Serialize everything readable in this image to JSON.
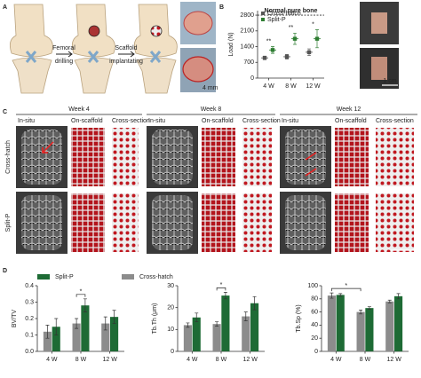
{
  "panel_labels": [
    "A",
    "B",
    "C",
    "D"
  ],
  "panel_a": {
    "steps": [
      [
        "Femoral",
        "drilling"
      ],
      [
        "Scaffold",
        "implantating"
      ]
    ],
    "scale_bar": "4 mm"
  },
  "panel_b_photos": {
    "scale_bar": "1 cm"
  },
  "panel_c": {
    "weeks": [
      "Week 4",
      "Week 8",
      "Week 12"
    ],
    "columns": [
      "In-situ",
      "On-scaffold",
      "Cross-section"
    ],
    "rows": [
      "Cross-hatch",
      "Split-P"
    ]
  },
  "chart_data": [
    {
      "type": "dot",
      "ylabel": "Load (N)",
      "categories": [
        "4 W",
        "8 W",
        "12 W"
      ],
      "ylim": [
        0,
        3000
      ],
      "yticks": [
        0,
        700,
        1400,
        2100,
        2800
      ],
      "legend": "upper left",
      "series": [
        {
          "name": "Cross-hatch",
          "color": "#555555",
          "values": [
            900,
            950,
            1150
          ],
          "errors": [
            80,
            100,
            150
          ]
        },
        {
          "name": "Split-P",
          "color": "#2e7d32",
          "values": [
            1250,
            1750,
            1750
          ],
          "errors": [
            150,
            250,
            400
          ]
        }
      ],
      "reference_line": {
        "value": 2800,
        "label": "Normal pure bone"
      },
      "annotations": [
        {
          "text": "**",
          "from": "4 W",
          "to": "4 W"
        },
        {
          "text": "**",
          "from": "8 W",
          "to": "8 W"
        },
        {
          "text": "*",
          "from": "12 W",
          "to": "12 W"
        }
      ]
    },
    {
      "type": "bar",
      "ylabel": "BV/TV",
      "categories": [
        "4 W",
        "8 W",
        "12 W"
      ],
      "ylim": [
        0,
        0.4
      ],
      "yticks": [
        {
          "value": 0,
          "label": "0.0"
        },
        0.1,
        0.2,
        0.3,
        0.4
      ],
      "legend": "top",
      "series": [
        {
          "name": "Cross-hatch",
          "color": "#8c8c8c",
          "values": [
            0.12,
            0.17,
            0.17
          ],
          "errors": [
            0.04,
            0.03,
            0.04
          ]
        },
        {
          "name": "Split-P",
          "color": "#1e6b35",
          "values": [
            0.15,
            0.28,
            0.21
          ],
          "errors": [
            0.05,
            0.04,
            0.04
          ]
        }
      ],
      "annotations": [
        {
          "text": "*",
          "from": "8 W",
          "to": "8 W"
        }
      ]
    },
    {
      "type": "bar",
      "ylabel": "Tb.Th (μm)",
      "categories": [
        "4 W",
        "8 W",
        "12 W"
      ],
      "ylim": [
        0,
        30
      ],
      "yticks": [
        0,
        10,
        20,
        30
      ],
      "series": [
        {
          "name": "Cross-hatch",
          "color": "#8c8c8c",
          "values": [
            12,
            12.5,
            16
          ],
          "errors": [
            1,
            1,
            2
          ]
        },
        {
          "name": "Split-P",
          "color": "#1e6b35",
          "values": [
            15.5,
            25.5,
            22
          ],
          "errors": [
            2,
            1.5,
            3
          ]
        }
      ],
      "annotations": [
        {
          "text": "*",
          "from": "8 W",
          "to": "8 W"
        }
      ]
    },
    {
      "type": "bar",
      "ylabel": "Tb.Sp (%)",
      "categories": [
        "4 W",
        "8 W",
        "12 W"
      ],
      "ylim": [
        0,
        100
      ],
      "yticks": [
        0,
        20,
        40,
        60,
        80,
        100
      ],
      "series": [
        {
          "name": "Cross-hatch",
          "color": "#8c8c8c",
          "values": [
            85,
            60,
            76
          ],
          "errors": [
            4,
            3,
            2
          ]
        },
        {
          "name": "Split-P",
          "color": "#1e6b35",
          "values": [
            86,
            66,
            84
          ],
          "errors": [
            2,
            2,
            4
          ]
        }
      ],
      "annotations": [
        {
          "text": "*",
          "from": "4 W",
          "to": "8 W"
        }
      ]
    }
  ]
}
